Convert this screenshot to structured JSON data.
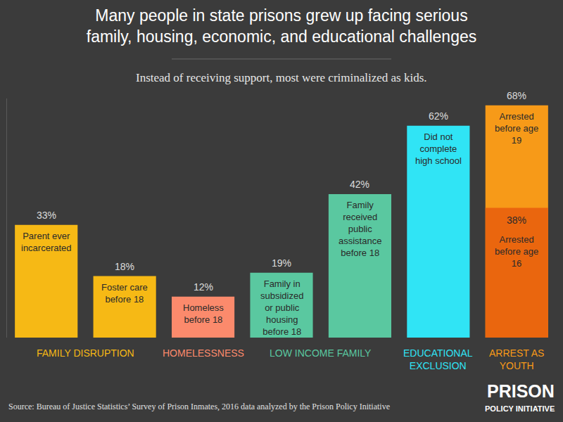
{
  "chart_data": {
    "type": "bar",
    "title": "Many people in state prisons grew up facing serious family, housing, economic, and educational challenges",
    "subtitle": "Instead of receiving support, most were criminalized as kids.",
    "categories": [
      "Parent ever incarcerated",
      "Foster care before 18",
      "Homeless before 18",
      "Family in subsidized or public housing before 18",
      "Family received public assistance before 18",
      "Did not complete high school",
      "Arrested before age 19"
    ],
    "series": [
      {
        "values": [
          33,
          18,
          12,
          19,
          42,
          62,
          68
        ],
        "value_labels": [
          "33%",
          "18%",
          "12%",
          "19%",
          "42%",
          "62%",
          "68%"
        ],
        "colors": [
          "#f6b915",
          "#f6b915",
          "#fb8a6c",
          "#5ac8a0",
          "#5ac8a0",
          "#30e4f5",
          "#f79a18"
        ]
      },
      {
        "values": [
          null,
          null,
          null,
          null,
          null,
          null,
          38
        ],
        "value_labels": [
          null,
          null,
          null,
          null,
          null,
          null,
          "38%"
        ],
        "labels": [
          null,
          null,
          null,
          null,
          null,
          null,
          "Arrested before age 16"
        ],
        "color": "#ea660e"
      }
    ],
    "groups": [
      {
        "label": "FAMILY DISRUPTION",
        "color": "#f6b915",
        "members": [
          "Parent ever incarcerated",
          "Foster care before 18"
        ]
      },
      {
        "label": "HOMELESSNESS",
        "color": "#fb8a6c",
        "members": [
          "Homeless before 18"
        ]
      },
      {
        "label": "LOW INCOME FAMILY",
        "color": "#5ac8a0",
        "members": [
          "Family in subsidized or public housing before 18",
          "Family received public assistance before 18"
        ]
      },
      {
        "label": "EDUCATIONAL EXCLUSION",
        "color": "#30e4f5",
        "members": [
          "Did not complete high school"
        ]
      },
      {
        "label": "ARREST AS YOUTH",
        "color": "#f79a18",
        "members": [
          "Arrested before age 19"
        ]
      }
    ],
    "ylim": [
      0,
      70
    ],
    "yticks": [],
    "tick_labels": false,
    "grid": false,
    "stacked": false,
    "data_labels": true,
    "source": "Source: Bureau of Justice Statistics’ Survey of Prison Inmates, 2016 data analyzed by the Prison Policy Initiative",
    "logo": [
      "PRISON",
      "POLICY INITIATIVE"
    ]
  }
}
